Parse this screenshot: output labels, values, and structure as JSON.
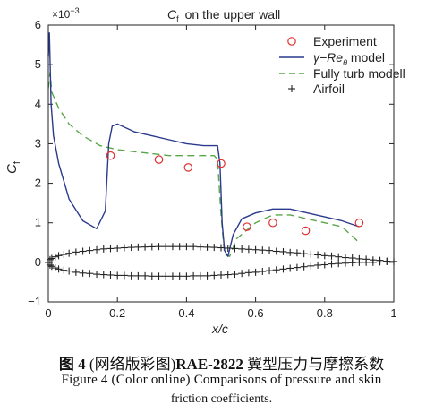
{
  "chart_data": {
    "type": "line",
    "title": "C_f on the upper wall",
    "title_main": "C",
    "title_sub": "f",
    "title_rest": "on the upper wall",
    "xlabel": "x/c",
    "ylabel_main": "C",
    "ylabel_sub": "f",
    "y_multiplier": "×10",
    "y_multiplier_exp": "−3",
    "xlim": [
      0,
      1
    ],
    "ylim": [
      -1,
      6
    ],
    "x_ticks": [
      "0",
      "0.2",
      "0.4",
      "0.6",
      "0.8",
      "1"
    ],
    "y_ticks": [
      "−1",
      "0",
      "1",
      "2",
      "3",
      "4",
      "5",
      "6"
    ],
    "legend": {
      "placement": "top-right",
      "entries": [
        {
          "label": "Experiment"
        },
        {
          "label_prefix": "γ−Re",
          "label_sub": "θ",
          "label_suffix": " model"
        },
        {
          "label": "Fully turb modell"
        },
        {
          "label": "Airfoil"
        }
      ]
    },
    "series": [
      {
        "name": "Experiment",
        "style": "circle",
        "color": "#e03030",
        "points": [
          [
            0.18,
            2.7
          ],
          [
            0.32,
            2.6
          ],
          [
            0.405,
            2.4
          ],
          [
            0.5,
            2.5
          ],
          [
            0.575,
            0.9
          ],
          [
            0.65,
            1.0
          ],
          [
            0.745,
            0.8
          ],
          [
            0.9,
            1.0
          ]
        ]
      },
      {
        "name": "γ−Reθ model",
        "style": "solid",
        "color": "#2a3a8c",
        "points": [
          [
            0.0,
            5.2
          ],
          [
            0.003,
            5.8
          ],
          [
            0.008,
            4.0
          ],
          [
            0.015,
            3.2
          ],
          [
            0.03,
            2.5
          ],
          [
            0.06,
            1.6
          ],
          [
            0.1,
            1.05
          ],
          [
            0.14,
            0.85
          ],
          [
            0.165,
            1.3
          ],
          [
            0.175,
            3.0
          ],
          [
            0.185,
            3.45
          ],
          [
            0.2,
            3.5
          ],
          [
            0.25,
            3.3
          ],
          [
            0.3,
            3.2
          ],
          [
            0.35,
            3.1
          ],
          [
            0.4,
            3.0
          ],
          [
            0.45,
            2.95
          ],
          [
            0.49,
            2.95
          ],
          [
            0.497,
            2.5
          ],
          [
            0.503,
            1.0
          ],
          [
            0.51,
            0.3
          ],
          [
            0.52,
            0.15
          ],
          [
            0.535,
            0.7
          ],
          [
            0.56,
            1.1
          ],
          [
            0.6,
            1.25
          ],
          [
            0.65,
            1.35
          ],
          [
            0.7,
            1.35
          ],
          [
            0.75,
            1.25
          ],
          [
            0.8,
            1.15
          ],
          [
            0.85,
            1.05
          ],
          [
            0.9,
            0.9
          ]
        ]
      },
      {
        "name": "Fully turb modell",
        "style": "dashed",
        "color": "#5aa64a",
        "points": [
          [
            0.0,
            4.4
          ],
          [
            0.005,
            4.8
          ],
          [
            0.01,
            4.3
          ],
          [
            0.03,
            3.9
          ],
          [
            0.06,
            3.5
          ],
          [
            0.1,
            3.2
          ],
          [
            0.15,
            2.95
          ],
          [
            0.2,
            2.85
          ],
          [
            0.25,
            2.8
          ],
          [
            0.3,
            2.75
          ],
          [
            0.35,
            2.7
          ],
          [
            0.4,
            2.7
          ],
          [
            0.45,
            2.7
          ],
          [
            0.48,
            2.7
          ],
          [
            0.49,
            2.6
          ],
          [
            0.5,
            1.2
          ],
          [
            0.51,
            0.2
          ],
          [
            0.525,
            0.15
          ],
          [
            0.545,
            0.6
          ],
          [
            0.6,
            1.0
          ],
          [
            0.65,
            1.2
          ],
          [
            0.7,
            1.2
          ],
          [
            0.75,
            1.1
          ],
          [
            0.8,
            1.0
          ],
          [
            0.85,
            0.9
          ],
          [
            0.9,
            0.5
          ]
        ]
      },
      {
        "name": "Airfoil",
        "style": "plus",
        "color": "#222222",
        "x": [
          0.0,
          0.005,
          0.01,
          0.02,
          0.03,
          0.045,
          0.06,
          0.08,
          0.1,
          0.12,
          0.14,
          0.16,
          0.18,
          0.2,
          0.22,
          0.24,
          0.26,
          0.28,
          0.3,
          0.32,
          0.34,
          0.36,
          0.38,
          0.4,
          0.42,
          0.44,
          0.46,
          0.48,
          0.5,
          0.52,
          0.54,
          0.56,
          0.58,
          0.6,
          0.62,
          0.64,
          0.66,
          0.68,
          0.7,
          0.72,
          0.74,
          0.76,
          0.78,
          0.8,
          0.82,
          0.84,
          0.86,
          0.88,
          0.9,
          0.92,
          0.94,
          0.96,
          0.98,
          1.0
        ],
        "upper": [
          0.0,
          0.07,
          0.1,
          0.14,
          0.17,
          0.2,
          0.23,
          0.26,
          0.28,
          0.3,
          0.32,
          0.34,
          0.35,
          0.36,
          0.37,
          0.38,
          0.385,
          0.39,
          0.395,
          0.4,
          0.4,
          0.4,
          0.4,
          0.4,
          0.4,
          0.39,
          0.385,
          0.38,
          0.37,
          0.36,
          0.35,
          0.34,
          0.33,
          0.32,
          0.31,
          0.3,
          0.28,
          0.27,
          0.25,
          0.24,
          0.22,
          0.21,
          0.19,
          0.17,
          0.16,
          0.14,
          0.12,
          0.11,
          0.09,
          0.08,
          0.06,
          0.05,
          0.03,
          0.02
        ],
        "lower": [
          0.0,
          -0.07,
          -0.1,
          -0.14,
          -0.17,
          -0.2,
          -0.22,
          -0.25,
          -0.27,
          -0.28,
          -0.3,
          -0.31,
          -0.32,
          -0.33,
          -0.33,
          -0.34,
          -0.34,
          -0.34,
          -0.35,
          -0.35,
          -0.35,
          -0.35,
          -0.35,
          -0.35,
          -0.34,
          -0.34,
          -0.34,
          -0.33,
          -0.32,
          -0.31,
          -0.3,
          -0.28,
          -0.26,
          -0.25,
          -0.23,
          -0.21,
          -0.19,
          -0.17,
          -0.15,
          -0.13,
          -0.11,
          -0.09,
          -0.07,
          -0.06,
          -0.04,
          -0.03,
          -0.02,
          -0.01,
          0.0,
          0.0,
          0.0,
          0.01,
          0.02,
          0.02
        ]
      }
    ]
  },
  "caption": {
    "cn_label": "图",
    "cn_number": " 4",
    "cn_open": "  (",
    "cn_online": "网络版彩图",
    "cn_close": ")",
    "cn_bold": "RAE-2822",
    "cn_rest": " 翼型压力与摩擦系数",
    "en_line1": "Figure 4   (Color online) Comparisons of pressure and skin",
    "en_line2": "friction coefficients."
  }
}
